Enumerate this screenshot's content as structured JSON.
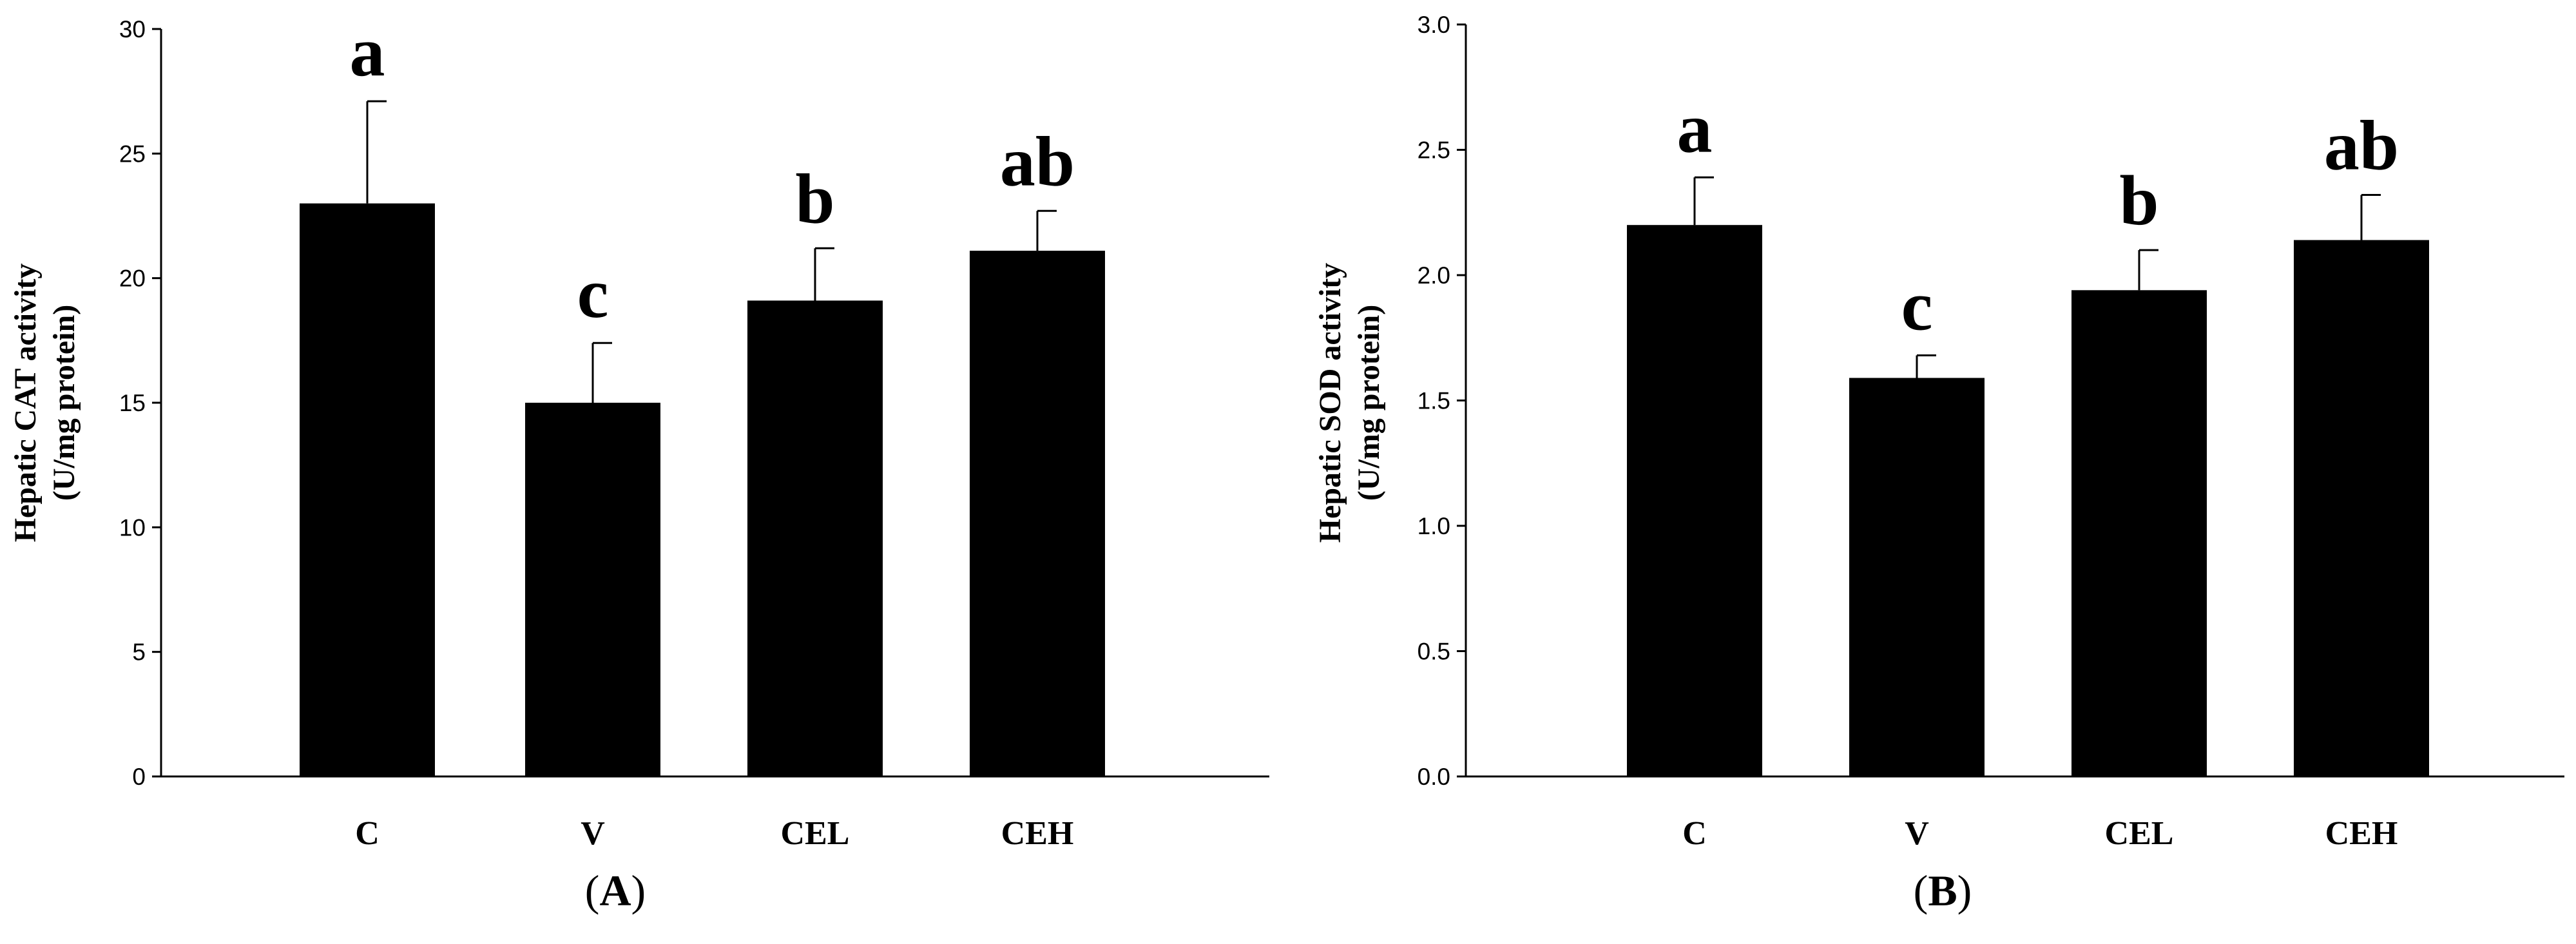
{
  "chart_data": [
    {
      "type": "bar",
      "panel": "A",
      "categories": [
        "C",
        "V",
        "CEL",
        "CEH"
      ],
      "values": [
        23.0,
        15.0,
        19.1,
        21.1
      ],
      "errors": [
        4.1,
        2.4,
        2.1,
        1.6
      ],
      "significance": [
        "a",
        "c",
        "b",
        "ab"
      ],
      "ylabel_line1": "Hepatic CAT activity",
      "ylabel_line2": "(U/mg protein)",
      "xlabel": "",
      "ylim": [
        0,
        30
      ],
      "yticks": [
        0,
        5,
        10,
        15,
        20,
        25,
        30
      ],
      "ytick_labels": [
        "0",
        "5",
        "10",
        "15",
        "20",
        "25",
        "30"
      ],
      "bar_color": "#000000",
      "grid": false
    },
    {
      "type": "bar",
      "panel": "B",
      "categories": [
        "C",
        "V",
        "CEL",
        "CEH"
      ],
      "values": [
        2.2,
        1.59,
        1.94,
        2.14
      ],
      "errors": [
        0.19,
        0.09,
        0.16,
        0.18
      ],
      "significance": [
        "a",
        "c",
        "b",
        "ab"
      ],
      "ylabel_line1": "Hepatic SOD activity",
      "ylabel_line2": "(U/mg protein)",
      "xlabel": "",
      "ylim": [
        0,
        3.0
      ],
      "yticks": [
        0,
        0.5,
        1.0,
        1.5,
        2.0,
        2.5,
        3.0
      ],
      "ytick_labels": [
        "0.0",
        "0.5",
        "1.0",
        "1.5",
        "2.0",
        "2.5",
        "3.0"
      ],
      "bar_color": "#000000",
      "grid": false
    }
  ]
}
